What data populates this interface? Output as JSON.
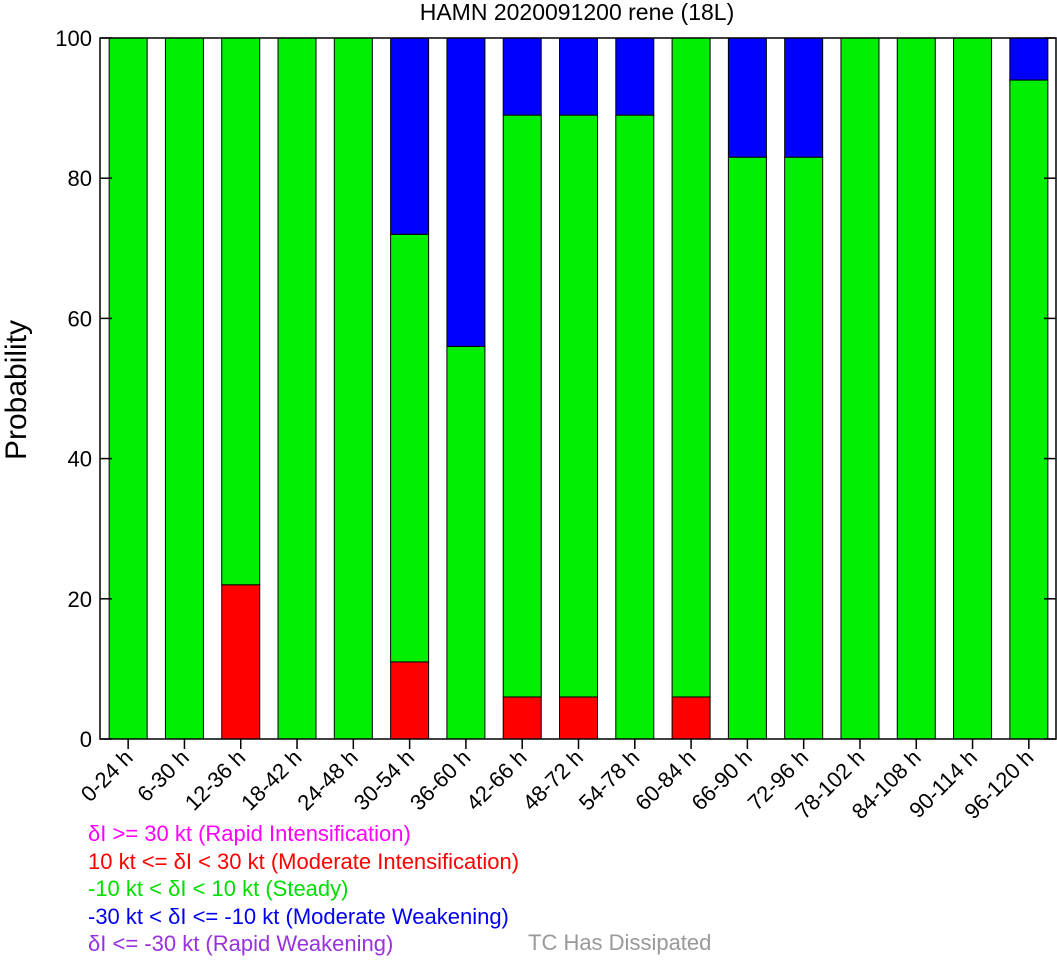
{
  "chart_data": {
    "type": "bar",
    "stacked": true,
    "title": "HAMN 2020091200 rene (18L)",
    "ylabel": "Probability",
    "xlabel": "",
    "ylim": [
      0,
      100
    ],
    "yticks": [
      "0",
      "20",
      "40",
      "60",
      "80",
      "100"
    ],
    "categories": [
      "0-24 h",
      "6-30 h",
      "12-36 h",
      "18-42 h",
      "24-48 h",
      "30-54 h",
      "36-60 h",
      "42-66 h",
      "48-72 h",
      "54-78 h",
      "60-84 h",
      "66-90 h",
      "72-96 h",
      "78-102 h",
      "84-108 h",
      "90-114 h",
      "96-120 h"
    ],
    "series": [
      {
        "key": "ri",
        "color": "#ff00ff",
        "values": [
          0,
          0,
          0,
          0,
          0,
          0,
          0,
          0,
          0,
          0,
          0,
          0,
          0,
          0,
          0,
          0,
          0
        ]
      },
      {
        "key": "mi",
        "color": "#ff0000",
        "values": [
          0,
          0,
          22,
          0,
          0,
          11,
          0,
          6,
          6,
          0,
          6,
          0,
          0,
          0,
          0,
          0,
          0
        ]
      },
      {
        "key": "steady",
        "color": "#00ee00",
        "values": [
          100,
          100,
          78,
          100,
          100,
          61,
          56,
          83,
          83,
          89,
          94,
          83,
          83,
          100,
          100,
          100,
          94
        ]
      },
      {
        "key": "mw",
        "color": "#0000ff",
        "values": [
          0,
          0,
          0,
          0,
          0,
          28,
          44,
          11,
          11,
          11,
          0,
          17,
          17,
          0,
          0,
          0,
          6
        ]
      },
      {
        "key": "rw",
        "color": "#9a30e0",
        "values": [
          0,
          0,
          0,
          0,
          0,
          0,
          0,
          0,
          0,
          0,
          0,
          0,
          0,
          0,
          0,
          0,
          0
        ]
      }
    ],
    "grid": false
  },
  "legend": [
    {
      "text": "δI >= 30 kt (Rapid Intensification)",
      "color": "#ff00ff"
    },
    {
      "text": "10 kt <= δI < 30 kt (Moderate Intensification)",
      "color": "#ff0000"
    },
    {
      "text": "-10 kt < δI < 10 kt (Steady)",
      "color": "#00dd00"
    },
    {
      "text": "-30 kt < δI <= -10 kt (Moderate Weakening)",
      "color": "#0000ee"
    },
    {
      "text": "δI <= -30 kt (Rapid Weakening)",
      "color": "#9a30e0"
    }
  ],
  "dissipated": {
    "text": "TC Has Dissipated",
    "color": "#999999"
  }
}
